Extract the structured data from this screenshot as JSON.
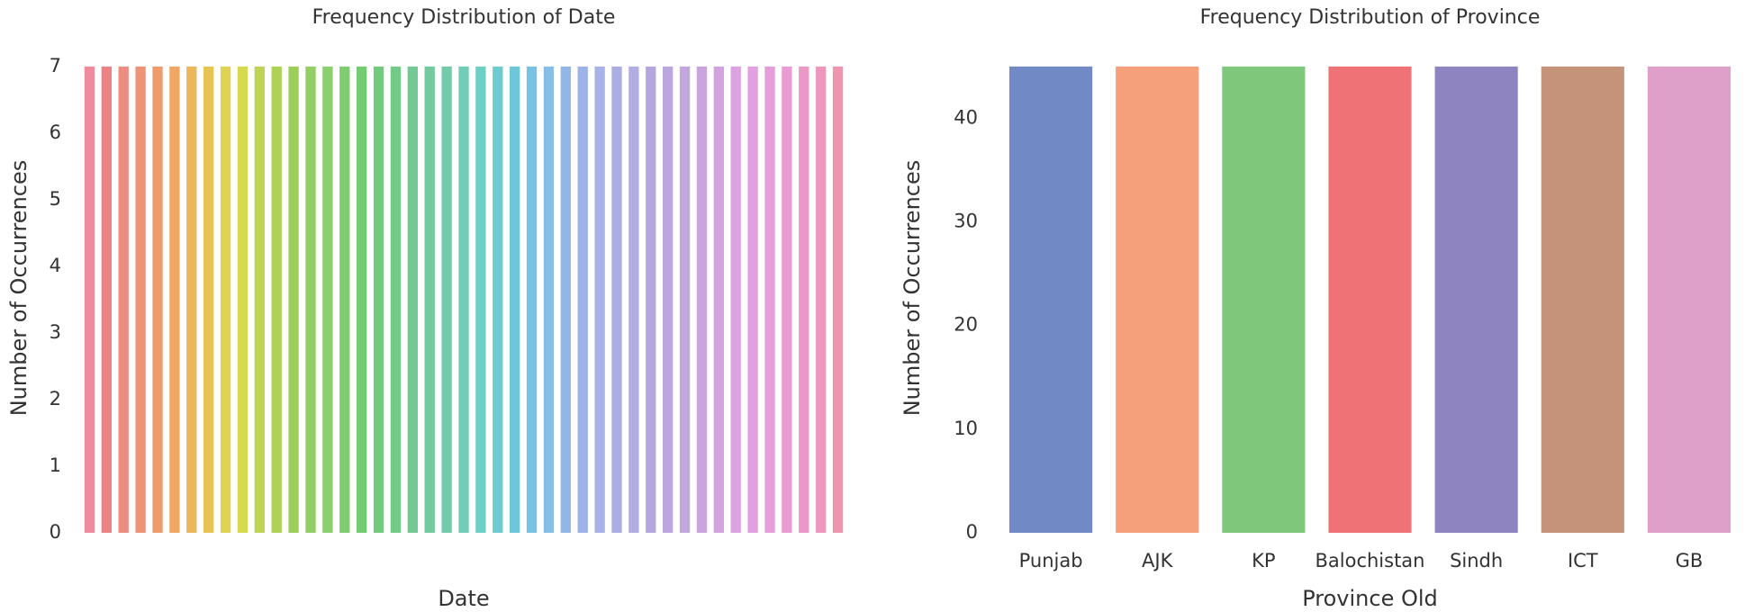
{
  "chart_data": [
    {
      "type": "bar",
      "title": "Frequency Distribution of Date",
      "xlabel": "Date",
      "ylabel": "Number of Occurrences",
      "categories": [
        null,
        null,
        null,
        null,
        null,
        null,
        null,
        null,
        null,
        null,
        null,
        null,
        null,
        null,
        null,
        null,
        null,
        null,
        null,
        null,
        null,
        null,
        null,
        null,
        null,
        null,
        null,
        null,
        null,
        null,
        null,
        null,
        null,
        null,
        null,
        null,
        null,
        null,
        null,
        null,
        null,
        null,
        null,
        null,
        null
      ],
      "values": [
        7,
        7,
        7,
        7,
        7,
        7,
        7,
        7,
        7,
        7,
        7,
        7,
        7,
        7,
        7,
        7,
        7,
        7,
        7,
        7,
        7,
        7,
        7,
        7,
        7,
        7,
        7,
        7,
        7,
        7,
        7,
        7,
        7,
        7,
        7,
        7,
        7,
        7,
        7,
        7,
        7,
        7,
        7,
        7,
        7
      ],
      "colors": [
        "hsl(350,75%,74%)",
        "hsl(358,75%,72%)",
        "hsl(6,75%,72%)",
        "hsl(14,78%,70%)",
        "hsl(22,80%,68%)",
        "hsl(30,80%,66%)",
        "hsl(38,78%,64%)",
        "hsl(46,75%,62%)",
        "hsl(54,70%,60%)",
        "hsl(62,65%,58%)",
        "hsl(70,60%,58%)",
        "hsl(78,58%,58%)",
        "hsl(86,55%,58%)",
        "hsl(94,52%,60%)",
        "hsl(102,50%,62%)",
        "hsl(110,48%,62%)",
        "hsl(118,46%,62%)",
        "hsl(126,45%,62%)",
        "hsl(134,44%,62%)",
        "hsl(142,44%,62%)",
        "hsl(150,45%,62%)",
        "hsl(158,46%,62%)",
        "hsl(166,48%,62%)",
        "hsl(174,50%,62%)",
        "hsl(182,52%,62%)",
        "hsl(190,58%,64%)",
        "hsl(198,64%,68%)",
        "hsl(206,68%,72%)",
        "hsl(214,66%,74%)",
        "hsl(222,60%,76%)",
        "hsl(230,55%,78%)",
        "hsl(238,50%,78%)",
        "hsl(246,46%,78%)",
        "hsl(254,44%,76%)",
        "hsl(262,44%,76%)",
        "hsl(270,46%,76%)",
        "hsl(278,48%,76%)",
        "hsl(286,50%,76%)",
        "hsl(294,52%,76%)",
        "hsl(302,55%,76%)",
        "hsl(310,58%,76%)",
        "hsl(318,62%,76%)",
        "hsl(326,66%,76%)",
        "hsl(334,70%,76%)",
        "hsl(342,72%,76%)"
      ],
      "ylim": [
        0,
        7.35
      ],
      "yticks": [
        0,
        1,
        2,
        3,
        4,
        5,
        6,
        7
      ],
      "grid": false
    },
    {
      "type": "bar",
      "title": "Frequency Distribution of Province",
      "xlabel": "Province Old",
      "ylabel": "Number of Occurrences",
      "categories": [
        "Punjab",
        "AJK",
        "KP",
        "Balochistan",
        "Sindh",
        "ICT",
        "GB"
      ],
      "values": [
        45,
        45,
        45,
        45,
        45,
        45,
        45
      ],
      "colors": [
        "#7189c4",
        "#f5a07a",
        "#7fc77a",
        "#ee7276",
        "#8e85c0",
        "#c4937a",
        "#dea0c9"
      ],
      "ylim": [
        0,
        47.25
      ],
      "yticks": [
        0,
        10,
        20,
        30,
        40
      ],
      "grid": false
    }
  ]
}
